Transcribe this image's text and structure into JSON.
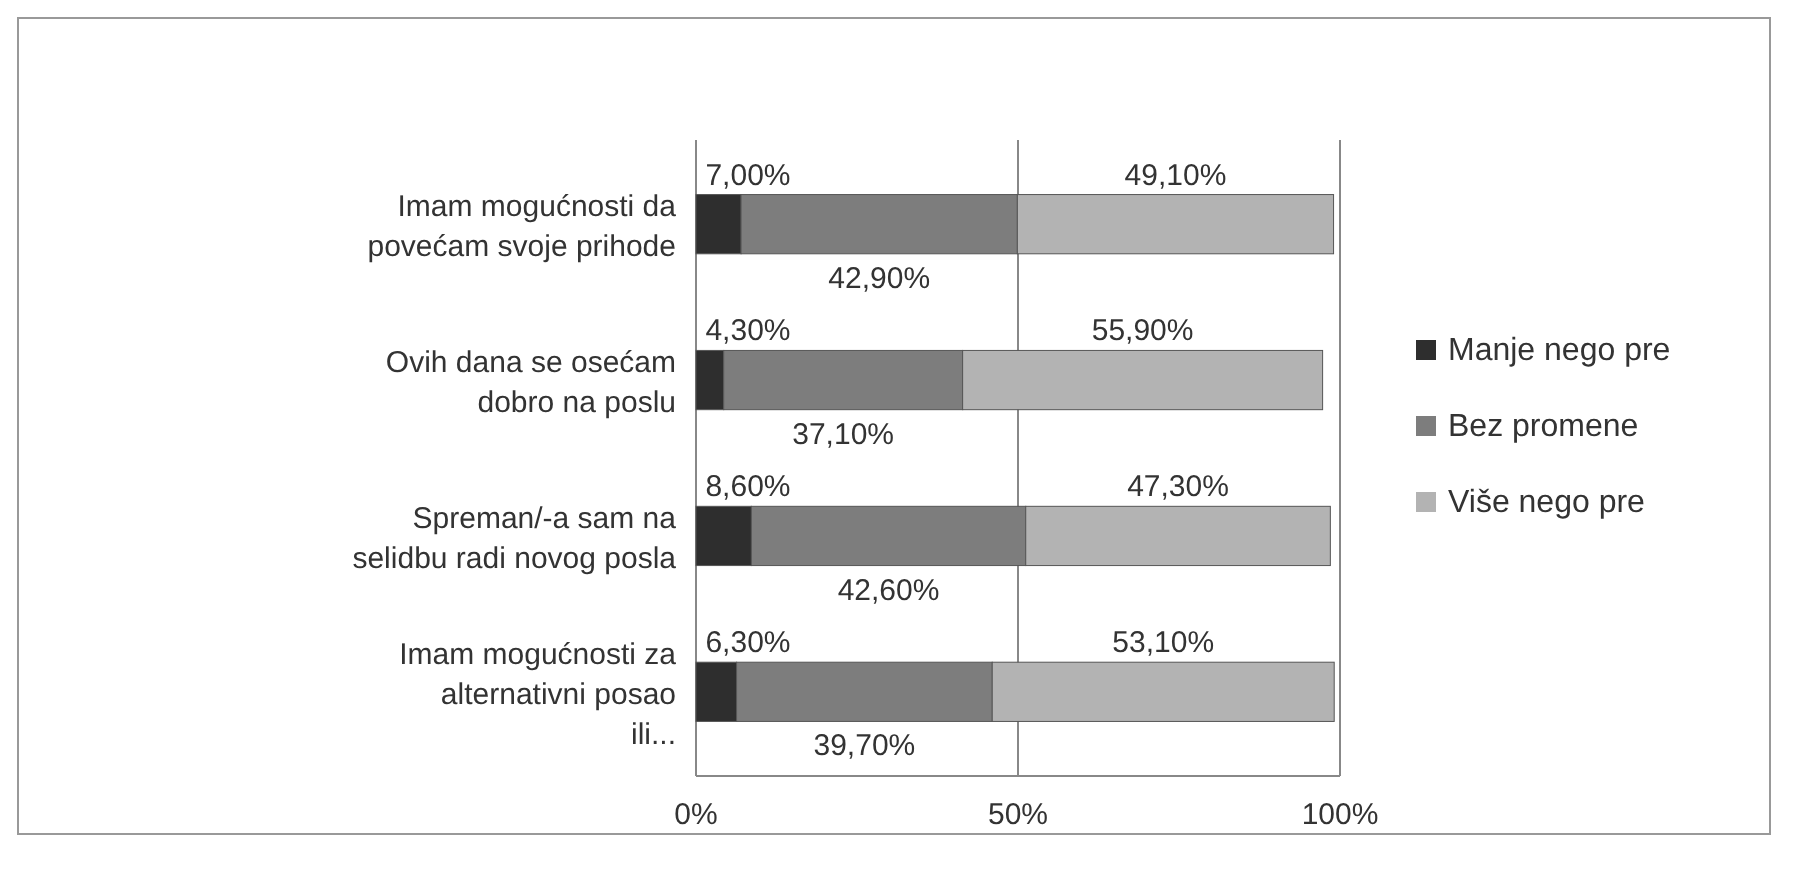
{
  "chart_data": {
    "type": "bar",
    "orientation": "horizontal",
    "stacked": true,
    "categories": [
      "Imam mogućnosti da povećam svoje prihode",
      "Ovih dana se osećam dobro na poslu",
      "Spreman/-a sam na selidbu radi novog posla",
      "Imam mogućnosti za alternativni posao ili..."
    ],
    "series": [
      {
        "name": "Manje nego pre",
        "color": "#2e2e2e",
        "values": [
          7.0,
          4.3,
          8.6,
          6.3
        ],
        "value_labels": [
          "7,00%",
          "4,30%",
          "8,60%",
          "6,30%"
        ]
      },
      {
        "name": "Bez promene",
        "color": "#7d7d7d",
        "values": [
          42.9,
          37.1,
          42.6,
          39.7
        ],
        "value_labels": [
          "42,90%",
          "37,10%",
          "42,60%",
          "39,70%"
        ]
      },
      {
        "name": "Više nego pre",
        "color": "#b3b3b3",
        "values": [
          49.1,
          55.9,
          47.3,
          53.1
        ],
        "value_labels": [
          "49,10%",
          "55,90%",
          "47,30%",
          "53,10%"
        ]
      }
    ],
    "xlim": [
      0,
      100
    ],
    "xticks": [
      {
        "value": 0,
        "label": "0%"
      },
      {
        "value": 50,
        "label": "50%"
      },
      {
        "value": 100,
        "label": "100%"
      }
    ],
    "grid": "x",
    "legend": "right"
  }
}
